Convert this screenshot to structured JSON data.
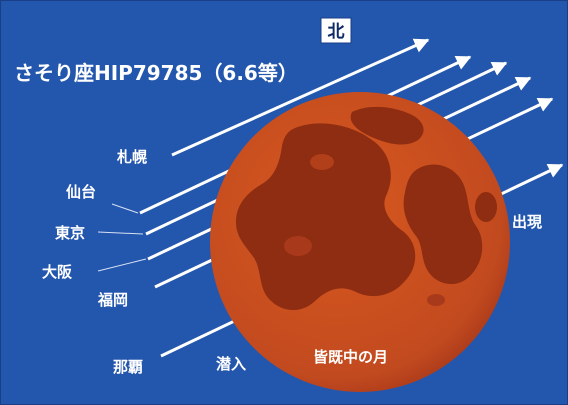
{
  "title": "さそり座HIP79785（6.6等）",
  "north_label": "北",
  "moon_label": "皆既中の月",
  "disappear_label": "潜入",
  "reappear_label": "出現",
  "cities": [
    "札幌",
    "仙台",
    "東京",
    "大阪",
    "福岡",
    "那覇"
  ],
  "colors": {
    "background": "#2356ad",
    "moon": "#c24a1f",
    "moon_dark": "#8e2d12",
    "paths": "#ffffff",
    "north_box": "#ffffff"
  }
}
